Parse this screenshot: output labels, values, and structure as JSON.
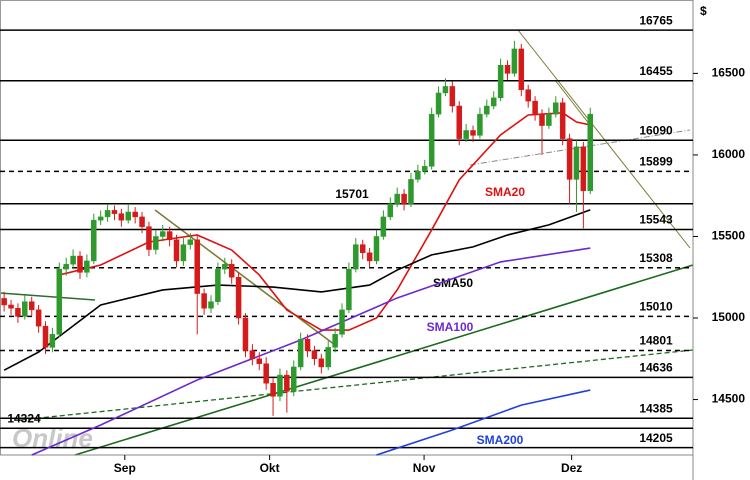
{
  "chart_data": {
    "type": "candlestick",
    "currency_label": "$",
    "watermark": "Online",
    "up_color": "#2e9a2e",
    "down_color": "#d41a1a",
    "xlim": [
      -0.6,
      99.9
    ],
    "xticks": [
      {
        "value": 17.5,
        "label": "Sep"
      },
      {
        "value": 38.5,
        "label": "Okt"
      },
      {
        "value": 60.9,
        "label": "Nov"
      },
      {
        "value": 82.3,
        "label": "Dez"
      }
    ],
    "ylim": [
      14160,
      16950
    ],
    "yticks": [
      14500,
      15000,
      15500,
      16000,
      16500
    ],
    "ohlc": [
      [
        15120,
        15160,
        15040,
        15080
      ],
      [
        15080,
        15110,
        15020,
        15060
      ],
      [
        15060,
        15090,
        14970,
        15010
      ],
      [
        15010,
        15140,
        14990,
        15100
      ],
      [
        15100,
        15130,
        15010,
        15050
      ],
      [
        15050,
        15080,
        14910,
        14950
      ],
      [
        14950,
        14980,
        14780,
        14820
      ],
      [
        14820,
        14940,
        14790,
        14900
      ],
      [
        14900,
        15340,
        14880,
        15300
      ],
      [
        15300,
        15370,
        15260,
        15330
      ],
      [
        15330,
        15420,
        15300,
        15380
      ],
      [
        15380,
        15410,
        15240,
        15280
      ],
      [
        15280,
        15390,
        15250,
        15350
      ],
      [
        15350,
        15640,
        15330,
        15600
      ],
      [
        15600,
        15660,
        15570,
        15620
      ],
      [
        15620,
        15700,
        15590,
        15660
      ],
      [
        15660,
        15690,
        15600,
        15640
      ],
      [
        15640,
        15670,
        15560,
        15600
      ],
      [
        15600,
        15700,
        15580,
        15650
      ],
      [
        15650,
        15680,
        15580,
        15620
      ],
      [
        15620,
        15650,
        15520,
        15560
      ],
      [
        15560,
        15590,
        15380,
        15420
      ],
      [
        15420,
        15540,
        15390,
        15500
      ],
      [
        15500,
        15570,
        15470,
        15530
      ],
      [
        15530,
        15560,
        15440,
        15480
      ],
      [
        15480,
        15510,
        15310,
        15350
      ],
      [
        15350,
        15490,
        15320,
        15450
      ],
      [
        15450,
        15520,
        15420,
        15480
      ],
      [
        15480,
        15510,
        14900,
        15150
      ],
      [
        15150,
        15180,
        15020,
        15060
      ],
      [
        15060,
        15140,
        15030,
        15100
      ],
      [
        15100,
        15340,
        15080,
        15300
      ],
      [
        15300,
        15370,
        15270,
        15330
      ],
      [
        15330,
        15360,
        15210,
        15250
      ],
      [
        15250,
        15280,
        14960,
        15000
      ],
      [
        15000,
        15030,
        14760,
        14800
      ],
      [
        14800,
        14840,
        14710,
        14750
      ],
      [
        14750,
        14790,
        14680,
        14720
      ],
      [
        14720,
        14760,
        14560,
        14600
      ],
      [
        14600,
        14630,
        14400,
        14520
      ],
      [
        14520,
        14690,
        14490,
        14650
      ],
      [
        14650,
        14680,
        14420,
        14550
      ],
      [
        14550,
        14740,
        14520,
        14700
      ],
      [
        14700,
        14910,
        14680,
        14870
      ],
      [
        14870,
        14900,
        14760,
        14800
      ],
      [
        14800,
        14830,
        14710,
        14750
      ],
      [
        14750,
        14780,
        14660,
        14700
      ],
      [
        14700,
        14860,
        14680,
        14820
      ],
      [
        14820,
        14940,
        14790,
        14900
      ],
      [
        14900,
        15090,
        14880,
        15050
      ],
      [
        15050,
        15340,
        15030,
        15300
      ],
      [
        15300,
        15490,
        15280,
        15450
      ],
      [
        15450,
        15480,
        15360,
        15400
      ],
      [
        15400,
        15430,
        15310,
        15350
      ],
      [
        15350,
        15540,
        15330,
        15500
      ],
      [
        15500,
        15660,
        15480,
        15620
      ],
      [
        15620,
        15740,
        15600,
        15700
      ],
      [
        15700,
        15800,
        15680,
        15760
      ],
      [
        15760,
        15790,
        15660,
        15700
      ],
      [
        15700,
        15890,
        15680,
        15850
      ],
      [
        15850,
        15940,
        15830,
        15900
      ],
      [
        15900,
        15970,
        15880,
        15930
      ],
      [
        15930,
        16290,
        15910,
        16250
      ],
      [
        16250,
        16420,
        16230,
        16380
      ],
      [
        16380,
        16470,
        16360,
        16420
      ],
      [
        16420,
        16450,
        16260,
        16300
      ],
      [
        16300,
        16330,
        16060,
        16100
      ],
      [
        16100,
        16190,
        16080,
        16150
      ],
      [
        16150,
        16180,
        16080,
        16120
      ],
      [
        16120,
        16290,
        16100,
        16250
      ],
      [
        16250,
        16340,
        16230,
        16300
      ],
      [
        16300,
        16390,
        16280,
        16350
      ],
      [
        16350,
        16590,
        16330,
        16550
      ],
      [
        16550,
        16580,
        16460,
        16500
      ],
      [
        16500,
        16700,
        16480,
        16650
      ],
      [
        16650,
        16680,
        16360,
        16400
      ],
      [
        16400,
        16430,
        16290,
        16330
      ],
      [
        16330,
        16360,
        16210,
        16250
      ],
      [
        16250,
        16280,
        16000,
        16180
      ],
      [
        16180,
        16290,
        16160,
        16250
      ],
      [
        16250,
        16360,
        16230,
        16320
      ],
      [
        16320,
        16350,
        16060,
        16100
      ],
      [
        16100,
        16130,
        15700,
        15850
      ],
      [
        15850,
        16090,
        15650,
        16050
      ],
      [
        16050,
        16080,
        15550,
        15780
      ],
      [
        15780,
        16290,
        15760,
        16250
      ]
    ],
    "series": [
      {
        "name": "SMA20",
        "color": "#e01010",
        "x": [
          8,
          14,
          21,
          28,
          33,
          37,
          41,
          46,
          50,
          54,
          57,
          62,
          66,
          72,
          76,
          81,
          83,
          85
        ],
        "values": [
          15264,
          15325,
          15466,
          15509,
          15417,
          15264,
          15049,
          14926,
          14926,
          15000,
          15172,
          15540,
          15847,
          16123,
          16245,
          16258,
          16202,
          16184
        ]
      },
      {
        "name": "SMA50",
        "color": "#000000",
        "x": [
          0,
          5,
          14,
          23,
          31,
          39,
          46,
          53,
          57,
          62,
          68,
          73,
          79,
          85
        ],
        "values": [
          14680,
          14791,
          15080,
          15172,
          15202,
          15190,
          15160,
          15202,
          15294,
          15387,
          15436,
          15509,
          15571,
          15663
        ]
      },
      {
        "name": "SMA100",
        "color": "#6a2ad0",
        "x": [
          4,
          14,
          28,
          43,
          57,
          72,
          85
        ],
        "values": [
          14160,
          14344,
          14620,
          14865,
          15123,
          15344,
          15429
        ]
      },
      {
        "name": "SMA200",
        "color": "#1f3fe0",
        "x": [
          54,
          65,
          75,
          85
        ],
        "values": [
          14160,
          14313,
          14466,
          14558
        ]
      }
    ],
    "levels": [
      {
        "value": 16765,
        "dashed": false
      },
      {
        "value": 16455,
        "dashed": false
      },
      {
        "value": 16090,
        "dashed": false
      },
      {
        "value": 15899,
        "dashed": true
      },
      {
        "value": 15701,
        "dashed": false
      },
      {
        "value": 15543,
        "dashed": false
      },
      {
        "value": 15308,
        "dashed": true
      },
      {
        "value": 15010,
        "dashed": true
      },
      {
        "value": 14801,
        "dashed": true
      },
      {
        "value": 14636,
        "dashed": false
      },
      {
        "value": 14385,
        "dashed": false
      },
      {
        "value": 14324,
        "dashed": false
      },
      {
        "value": 14205,
        "dashed": false
      }
    ]
  }
}
